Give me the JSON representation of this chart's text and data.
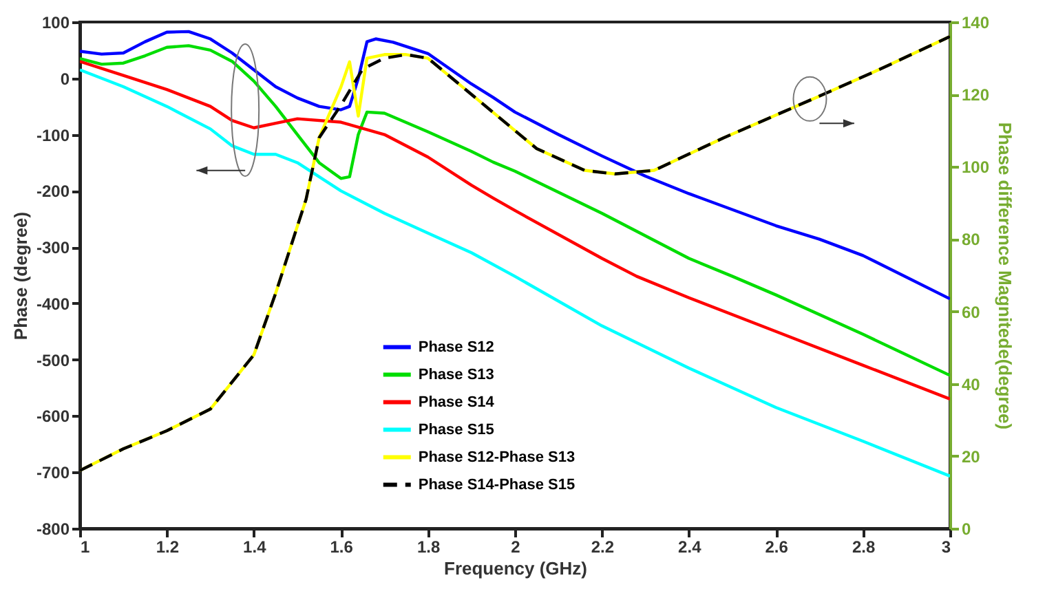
{
  "chart_data": {
    "type": "line",
    "xlabel": "Frequency (GHz)",
    "ylabel": "Phase (degree)",
    "y2label": "Phase difference Magnitede(degree)",
    "xlim": [
      1,
      3
    ],
    "xticks": [
      1,
      1.2,
      1.4,
      1.6,
      1.8,
      2,
      2.2,
      2.4,
      2.6,
      2.8,
      3
    ],
    "ylim": [
      -800,
      100
    ],
    "yticks": [
      -800,
      -700,
      -600,
      -500,
      -400,
      -300,
      -200,
      -100,
      0,
      100
    ],
    "y2lim": [
      0,
      140
    ],
    "y2ticks": [
      0,
      20,
      40,
      60,
      80,
      100,
      120,
      140
    ],
    "grid": false,
    "legend": "bottom",
    "marker": "none",
    "series": [
      {
        "name": "Phase S12",
        "color": "#0000ff",
        "x": [
          1,
          1.05,
          1.1,
          1.15,
          1.2,
          1.25,
          1.3,
          1.35,
          1.4,
          1.45,
          1.5,
          1.55,
          1.6,
          1.62,
          1.64,
          1.66,
          1.68,
          1.72,
          1.8,
          1.9,
          1.95,
          2,
          2.1,
          2.2,
          2.3,
          2.4,
          2.6,
          2.7,
          2.8,
          3
        ],
        "values": [
          48,
          43,
          45,
          65,
          82,
          83,
          70,
          45,
          15,
          -15,
          -35,
          -50,
          -56,
          -50,
          0,
          65,
          70,
          64,
          44,
          -10,
          -34,
          -60,
          -100,
          -138,
          -174,
          -205,
          -262,
          -286,
          -315,
          -392
        ]
      },
      {
        "name": "Phase S13",
        "color": "#00dd00",
        "x": [
          1,
          1.05,
          1.1,
          1.15,
          1.2,
          1.25,
          1.3,
          1.35,
          1.4,
          1.45,
          1.5,
          1.55,
          1.6,
          1.62,
          1.64,
          1.66,
          1.7,
          1.8,
          1.9,
          1.95,
          2,
          2.2,
          2.4,
          2.5,
          2.6,
          2.8,
          3
        ],
        "values": [
          35,
          25,
          27,
          40,
          55,
          58,
          50,
          30,
          -5,
          -50,
          -100,
          -150,
          -178,
          -175,
          -100,
          -60,
          -62,
          -95,
          -130,
          -149,
          -165,
          -240,
          -320,
          -352,
          -385,
          -455,
          -528
        ]
      },
      {
        "name": "Phase S14",
        "color": "#ff0000",
        "x": [
          1,
          1.1,
          1.2,
          1.3,
          1.35,
          1.4,
          1.45,
          1.5,
          1.6,
          1.7,
          1.8,
          1.9,
          1.95,
          2,
          2.2,
          2.28,
          2.4,
          2.6,
          2.8,
          3
        ],
        "values": [
          30,
          5,
          -20,
          -50,
          -75,
          -88,
          -80,
          -72,
          -78,
          -100,
          -140,
          -190,
          -213,
          -235,
          -320,
          -352,
          -390,
          -450,
          -510,
          -570
        ]
      },
      {
        "name": "Phase S15",
        "color": "#00ffff",
        "x": [
          1,
          1.1,
          1.2,
          1.3,
          1.35,
          1.4,
          1.45,
          1.5,
          1.6,
          1.7,
          1.8,
          1.9,
          2,
          2.2,
          2.4,
          2.6,
          2.8,
          3
        ],
        "values": [
          15,
          -15,
          -50,
          -90,
          -120,
          -135,
          -135,
          -150,
          -200,
          -240,
          -275,
          -310,
          -352,
          -440,
          -515,
          -585,
          -645,
          -707
        ]
      },
      {
        "name": "Phase S12-Phase S13",
        "color": "#ffff00",
        "axis": "y2",
        "line_style": "solid",
        "x": [
          1,
          1.1,
          1.2,
          1.3,
          1.4,
          1.45,
          1.52,
          1.55,
          1.6,
          1.62,
          1.64,
          1.66,
          1.7,
          1.75,
          1.8,
          1.95,
          2.05,
          2.16,
          2.23,
          2.32,
          2.48,
          2.69,
          2.84,
          3
        ],
        "values": [
          16,
          22,
          27,
          33,
          48,
          65,
          91,
          108,
          122,
          129,
          114,
          130,
          131,
          131,
          130,
          115,
          105,
          99,
          98,
          99,
          108,
          119,
          127,
          136
        ]
      },
      {
        "name": "Phase S14-Phase S15",
        "color": "#000000",
        "axis": "y2",
        "line_style": "dashed",
        "x": [
          1,
          1.1,
          1.2,
          1.3,
          1.4,
          1.45,
          1.52,
          1.55,
          1.6,
          1.65,
          1.7,
          1.75,
          1.8,
          1.95,
          2.05,
          2.16,
          2.23,
          2.32,
          2.48,
          2.69,
          2.84,
          3
        ],
        "values": [
          16,
          22,
          27,
          33,
          48,
          65,
          91,
          108,
          117,
          127,
          130,
          131,
          130,
          115,
          105,
          99,
          98,
          99,
          108,
          119,
          127,
          136
        ]
      }
    ]
  }
}
